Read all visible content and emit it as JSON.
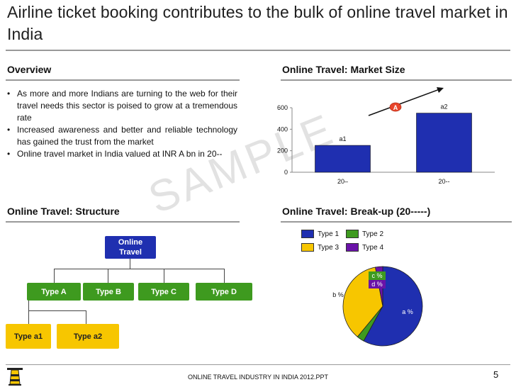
{
  "slide": {
    "title": "Airline ticket booking contributes to the bulk of online travel market in India",
    "footer": "ONLINE TRAVEL INDUSTRY IN INDIA 2012.PPT",
    "page_number": "5",
    "watermark": "SAMPLE"
  },
  "overview": {
    "heading": "Overview",
    "bullets": [
      "As more and more Indians are turning to the web for their travel needs this sector is poised to grow at a tremendous rate",
      "Increased awareness and better and reliable technology has gained the trust from the market",
      "Online travel market in India valued at INR  A bn  in 20--"
    ]
  },
  "market_size": {
    "heading": "Online Travel: Market Size",
    "growth_label": "A"
  },
  "structure": {
    "heading": "Online Travel: Structure",
    "root": "Online Travel",
    "level1": [
      "Type A",
      "Type B",
      "Type C",
      "Type D"
    ],
    "level2": [
      "Type a1",
      "Type a2"
    ]
  },
  "breakup": {
    "heading": "Online Travel: Break-up (20-----)"
  },
  "colors": {
    "bar_blue": "#1f2fb0",
    "green": "#3e9a1f",
    "yellow": "#f7c600",
    "purple": "#6a12a8"
  },
  "chart_data": [
    {
      "type": "bar",
      "categories": [
        "20–",
        "20--"
      ],
      "values": [
        250,
        550
      ],
      "data_labels": [
        "a1",
        "a2"
      ],
      "ylim": [
        0,
        600
      ],
      "yticks": [
        0,
        200,
        400,
        600
      ],
      "xlabel": "",
      "ylabel": "",
      "grid": false,
      "legend": "none"
    },
    {
      "type": "pie",
      "labels": [
        "Type 1",
        "Type 2",
        "Type 3",
        "Type 4"
      ],
      "values": [
        58,
        3,
        36,
        3
      ],
      "data_labels": [
        "a %",
        "c %",
        "b %",
        "d %"
      ],
      "colors": [
        "#1f2fb0",
        "#3e9a1f",
        "#f7c600",
        "#6a12a8"
      ],
      "legend": "top"
    }
  ]
}
